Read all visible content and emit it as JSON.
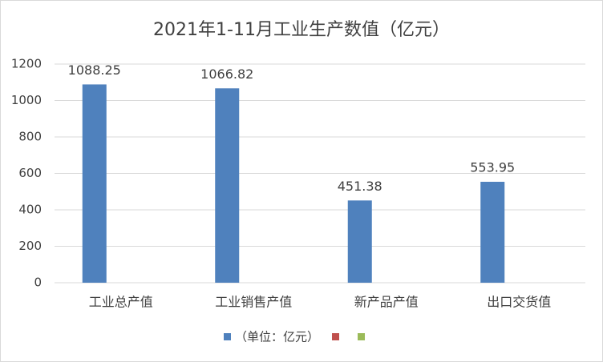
{
  "chart_data": {
    "type": "bar",
    "title": "2021年1-11月工业生产数值（亿元）",
    "categories": [
      "工业总产值",
      "工业销售产值",
      "新产品产值",
      "出口交货值"
    ],
    "series": [
      {
        "name": "（单位：亿元）",
        "color": "#4f81bd",
        "values": [
          1088.25,
          1066.82,
          451.38,
          553.95
        ]
      },
      {
        "color": "#c0504d",
        "values": [
          null,
          null,
          null,
          null
        ]
      },
      {
        "color": "#9bbb59",
        "values": [
          null,
          null,
          null,
          null
        ]
      }
    ],
    "ylim": [
      0,
      1200
    ],
    "yticks": [
      0,
      200,
      400,
      600,
      800,
      1000,
      1200
    ],
    "grid": true,
    "legend": "bottom"
  }
}
